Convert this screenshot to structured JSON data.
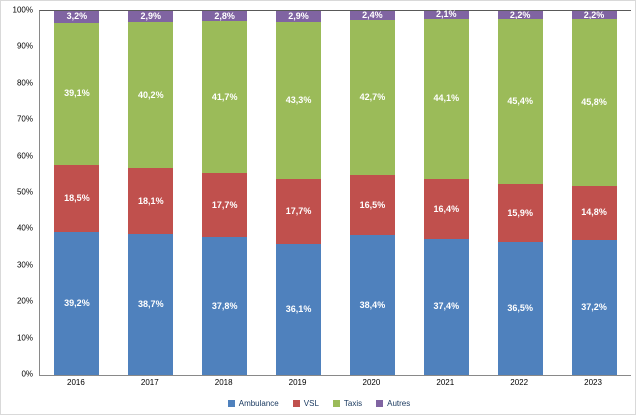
{
  "chart_data": {
    "type": "bar",
    "stacked": true,
    "percent_stacked": true,
    "title": "",
    "xlabel": "",
    "ylabel": "",
    "categories": [
      "2016",
      "2017",
      "2018",
      "2019",
      "2020",
      "2021",
      "2022",
      "2023"
    ],
    "series": [
      {
        "name": "Ambulance",
        "color": "#4F81BD",
        "values": [
          39.2,
          38.7,
          37.8,
          36.1,
          38.4,
          37.4,
          36.5,
          37.2
        ]
      },
      {
        "name": "VSL",
        "color": "#C0504D",
        "values": [
          18.5,
          18.1,
          17.7,
          17.7,
          16.5,
          16.4,
          15.9,
          14.8
        ]
      },
      {
        "name": "Taxis",
        "color": "#9BBB59",
        "values": [
          39.1,
          40.2,
          41.7,
          43.3,
          42.7,
          44.1,
          45.4,
          45.8
        ]
      },
      {
        "name": "Autres",
        "color": "#8064A2",
        "values": [
          3.2,
          2.9,
          2.8,
          2.9,
          2.4,
          2.1,
          2.2,
          2.2
        ]
      }
    ],
    "ylim": [
      0,
      100
    ],
    "y_ticks": [
      "0%",
      "10%",
      "20%",
      "30%",
      "40%",
      "50%",
      "60%",
      "70%",
      "80%",
      "90%",
      "100%"
    ],
    "grid": false,
    "legend_position": "bottom",
    "data_label_format": "decimal-comma-percent"
  },
  "style": {
    "bar_label_color": "#FFFFFF",
    "axis_line_color": "#898989",
    "legend_text_color": "#17375E",
    "background": "#FFFFFF"
  }
}
